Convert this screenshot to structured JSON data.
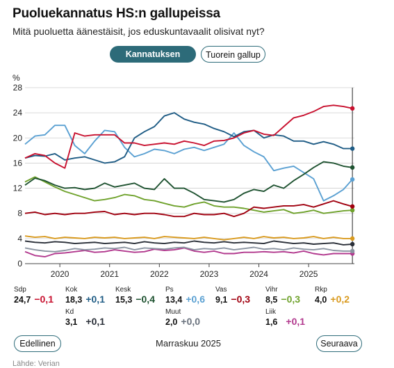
{
  "header": {
    "title": "Puoluekannatus HS:n gallupeissa",
    "subtitle": "Mitä puoluetta äänestäisit, jos eduskuntavaalit olisivat nyt?"
  },
  "tabs": {
    "active": "Kannatuksen kehitys",
    "inactive": "Tuorein gallup"
  },
  "chart_data": {
    "type": "line",
    "ylabel": "%",
    "ylim": [
      0,
      28
    ],
    "yticks": [
      0,
      4,
      8,
      12,
      16,
      20,
      24,
      28
    ],
    "xlim": [
      2019.3,
      2025.92
    ],
    "xticks": [
      2020,
      2021,
      2022,
      2023,
      2024,
      2025
    ],
    "x": [
      2019.3,
      2019.5,
      2019.7,
      2019.9,
      2020.1,
      2020.3,
      2020.5,
      2020.7,
      2020.9,
      2021.1,
      2021.3,
      2021.5,
      2021.7,
      2021.9,
      2022.1,
      2022.3,
      2022.5,
      2022.7,
      2022.9,
      2023.1,
      2023.3,
      2023.5,
      2023.7,
      2023.9,
      2024.1,
      2024.3,
      2024.5,
      2024.7,
      2024.9,
      2025.1,
      2025.3,
      2025.5,
      2025.7,
      2025.88
    ],
    "grid": true,
    "legend": "below",
    "series": [
      {
        "name": "Sdp",
        "color": "#c8102e",
        "values": [
          16.8,
          17.5,
          17.2,
          16.0,
          15.2,
          20.8,
          20.3,
          20.5,
          20.5,
          20.5,
          19.2,
          19.2,
          18.8,
          19.0,
          19.2,
          19.0,
          19.5,
          19.2,
          18.8,
          19.5,
          19.6,
          20.0,
          20.8,
          21.2,
          20.6,
          20.4,
          21.8,
          23.2,
          23.6,
          24.2,
          25.0,
          25.2,
          25.0,
          24.7
        ]
      },
      {
        "name": "Kok",
        "color": "#1f5c85",
        "values": [
          16.8,
          17.2,
          17.1,
          17.5,
          16.5,
          16.8,
          17.0,
          16.5,
          16.0,
          16.2,
          17.0,
          20.0,
          21.0,
          21.8,
          23.5,
          24.0,
          23.0,
          22.5,
          22.2,
          21.5,
          21.0,
          20.2,
          21.0,
          21.2,
          20.0,
          20.5,
          20.3,
          19.5,
          19.5,
          19.0,
          19.4,
          19.0,
          18.3,
          18.3
        ]
      },
      {
        "name": "Kesk",
        "color": "#1e5230",
        "values": [
          12.5,
          13.6,
          13.2,
          12.5,
          12.0,
          12.1,
          11.8,
          12.0,
          12.8,
          12.2,
          12.5,
          12.8,
          12.0,
          11.8,
          13.5,
          12.0,
          12.0,
          11.2,
          10.2,
          10.0,
          9.8,
          10.2,
          11.2,
          11.8,
          11.5,
          12.5,
          12.0,
          13.2,
          14.2,
          15.3,
          16.2,
          16.0,
          15.5,
          15.3
        ]
      },
      {
        "name": "Ps",
        "color": "#5aa0d2",
        "values": [
          19.0,
          20.3,
          20.5,
          22.0,
          22.0,
          18.8,
          17.5,
          19.5,
          21.2,
          21.0,
          18.5,
          17.0,
          17.5,
          18.2,
          18.0,
          17.5,
          18.2,
          18.5,
          18.0,
          18.5,
          19.0,
          20.8,
          18.8,
          17.8,
          17.0,
          14.8,
          15.2,
          15.5,
          14.5,
          13.5,
          10.0,
          10.8,
          11.8,
          13.4
        ]
      },
      {
        "name": "Vas",
        "color": "#a0000f",
        "values": [
          8.0,
          8.2,
          7.8,
          8.0,
          7.8,
          8.0,
          8.0,
          8.2,
          8.3,
          7.8,
          8.0,
          7.8,
          8.0,
          8.0,
          7.8,
          7.5,
          7.5,
          8.0,
          7.8,
          7.8,
          8.0,
          7.5,
          8.0,
          9.0,
          8.8,
          9.0,
          9.2,
          9.2,
          9.4,
          9.0,
          9.5,
          10.0,
          9.5,
          9.1
        ]
      },
      {
        "name": "Vihr",
        "color": "#6fa22c",
        "values": [
          13.0,
          13.8,
          13.0,
          12.2,
          11.5,
          11.0,
          10.5,
          10.0,
          10.2,
          10.5,
          11.0,
          10.8,
          10.2,
          10.0,
          9.6,
          9.2,
          9.0,
          9.5,
          9.8,
          9.2,
          9.0,
          9.0,
          8.8,
          8.5,
          8.2,
          8.4,
          8.6,
          8.0,
          8.2,
          8.5,
          8.0,
          8.2,
          8.4,
          8.5
        ]
      },
      {
        "name": "Rkp",
        "color": "#d99a1e",
        "values": [
          4.4,
          4.2,
          4.3,
          4.0,
          4.2,
          4.1,
          4.0,
          4.2,
          4.1,
          4.2,
          4.0,
          4.1,
          4.2,
          4.0,
          4.3,
          4.2,
          4.1,
          4.0,
          4.2,
          4.0,
          3.8,
          4.0,
          4.2,
          4.0,
          4.3,
          4.1,
          4.2,
          4.0,
          4.1,
          4.3,
          4.0,
          4.2,
          4.0,
          4.0
        ]
      },
      {
        "name": "Kd",
        "color": "#2a2f38",
        "values": [
          3.6,
          3.4,
          3.3,
          3.5,
          3.4,
          3.2,
          3.3,
          3.4,
          3.2,
          3.3,
          3.4,
          3.2,
          3.5,
          3.3,
          3.2,
          3.4,
          3.3,
          3.6,
          3.4,
          3.3,
          3.5,
          3.3,
          3.4,
          3.3,
          3.2,
          3.6,
          3.4,
          3.2,
          3.3,
          3.1,
          3.2,
          3.3,
          3.0,
          3.1
        ]
      },
      {
        "name": "Muut",
        "color": "#8a93a0",
        "values": [
          2.5,
          2.2,
          2.0,
          1.9,
          2.1,
          2.4,
          2.2,
          2.3,
          2.5,
          2.4,
          2.6,
          2.2,
          2.5,
          2.4,
          2.3,
          2.5,
          2.6,
          2.2,
          2.4,
          2.3,
          2.5,
          2.2,
          2.4,
          2.6,
          2.3,
          2.4,
          2.2,
          2.5,
          2.3,
          2.2,
          2.4,
          2.1,
          2.0,
          2.0
        ]
      },
      {
        "name": "Liik",
        "color": "#b2398e",
        "values": [
          1.9,
          1.3,
          1.1,
          1.6,
          1.7,
          1.9,
          2.1,
          1.8,
          1.9,
          2.2,
          2.0,
          1.8,
          1.9,
          2.3,
          2.1,
          2.2,
          2.5,
          2.0,
          1.8,
          2.0,
          1.6,
          1.6,
          1.8,
          1.8,
          1.9,
          1.8,
          1.9,
          1.7,
          2.0,
          1.6,
          1.4,
          1.6,
          1.6,
          1.6
        ]
      }
    ],
    "legend_items": [
      {
        "name": "Sdp",
        "value": "24,7",
        "change": "−0,1",
        "color": "#c8102e"
      },
      {
        "name": "Kok",
        "value": "18,3",
        "change": "+0,1",
        "color": "#1f5c85"
      },
      {
        "name": "Kesk",
        "value": "15,3",
        "change": "−0,4",
        "color": "#1e5230"
      },
      {
        "name": "Ps",
        "value": "13,4",
        "change": "+0,6",
        "color": "#5aa0d2"
      },
      {
        "name": "Vas",
        "value": "9,1",
        "change": "−0,3",
        "color": "#a0000f"
      },
      {
        "name": "Vihr",
        "value": "8,5",
        "change": "−0,3",
        "color": "#6fa22c"
      },
      {
        "name": "Rkp",
        "value": "4,0",
        "change": "+0,2",
        "color": "#d99a1e"
      },
      {
        "name": "Kd",
        "value": "3,1",
        "change": "+0,1",
        "color": "#2a2f38"
      },
      {
        "name": "Muut",
        "value": "2,0",
        "change": "+0,0",
        "color": "#8a93a0"
      },
      {
        "name": "Liik",
        "value": "1,6",
        "change": "+0,1",
        "color": "#b2398e"
      }
    ]
  },
  "navigation": {
    "prev_label": "Edellinen",
    "current_month": "Marraskuu 2025",
    "next_label": "Seuraava"
  },
  "footer": {
    "partial_text": "Lähde: Verian"
  }
}
